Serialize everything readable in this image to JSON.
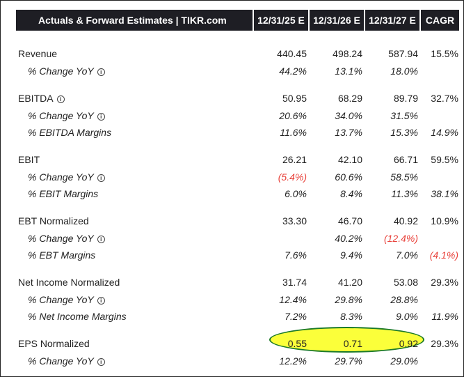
{
  "header": {
    "title": "Actuals & Forward Estimates | TIKR.com",
    "cols": [
      "12/31/25 E",
      "12/31/26 E",
      "12/31/27 E",
      "CAGR"
    ]
  },
  "rows": [
    {
      "label": "Revenue",
      "values": [
        "440.45",
        "498.24",
        "587.94",
        "15.5%"
      ]
    },
    {
      "label": "% Change YoY",
      "values": [
        "44.2%",
        "13.1%",
        "18.0%",
        ""
      ]
    },
    {
      "label": "EBITDA",
      "values": [
        "50.95",
        "68.29",
        "89.79",
        "32.7%"
      ]
    },
    {
      "label": "% Change YoY",
      "values": [
        "20.6%",
        "34.0%",
        "31.5%",
        ""
      ]
    },
    {
      "label": "% EBITDA Margins",
      "values": [
        "11.6%",
        "13.7%",
        "15.3%",
        "14.9%"
      ]
    },
    {
      "label": "EBIT",
      "values": [
        "26.21",
        "42.10",
        "66.71",
        "59.5%"
      ]
    },
    {
      "label": "% Change YoY",
      "values": [
        "(5.4%)",
        "60.6%",
        "58.5%",
        ""
      ]
    },
    {
      "label": "% EBIT Margins",
      "values": [
        "6.0%",
        "8.4%",
        "11.3%",
        "38.1%"
      ]
    },
    {
      "label": "EBT Normalized",
      "values": [
        "33.30",
        "46.70",
        "40.92",
        "10.9%"
      ]
    },
    {
      "label": "% Change YoY",
      "values": [
        "",
        "40.2%",
        "(12.4%)",
        ""
      ]
    },
    {
      "label": "% EBT Margins",
      "values": [
        "7.6%",
        "9.4%",
        "7.0%",
        "(4.1%)"
      ]
    },
    {
      "label": "Net Income Normalized",
      "values": [
        "31.74",
        "41.20",
        "53.08",
        "29.3%"
      ]
    },
    {
      "label": "% Change YoY",
      "values": [
        "12.4%",
        "29.8%",
        "28.8%",
        ""
      ]
    },
    {
      "label": "% Net Income Margins",
      "values": [
        "7.2%",
        "8.3%",
        "9.0%",
        "11.9%"
      ]
    },
    {
      "label": "EPS Normalized",
      "values": [
        "0.55",
        "0.71",
        "0.92",
        "29.3%"
      ]
    },
    {
      "label": "% Change YoY",
      "values": [
        "12.2%",
        "29.7%",
        "29.0%",
        ""
      ]
    }
  ],
  "colors": {
    "header_bg": "#1e1e24",
    "negative": "#e8413a",
    "highlight": "#fbff3a",
    "highlight_outline": "#1c7a28"
  },
  "icons": {
    "info": "info-circle-icon"
  }
}
